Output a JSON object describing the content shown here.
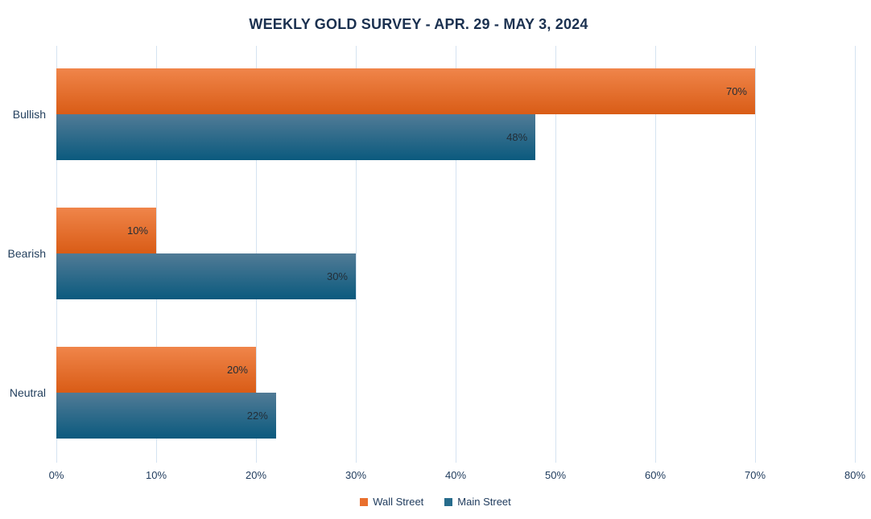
{
  "page": {
    "background": "#ffffff"
  },
  "chart_data": {
    "type": "bar",
    "orientation": "horizontal",
    "title": "WEEKLY GOLD SURVEY - APR. 29 - MAY 3, 2024",
    "categories": [
      "Bullish",
      "Bearish",
      "Neutral"
    ],
    "series": [
      {
        "name": "Wall Street",
        "values": [
          70,
          10,
          20
        ],
        "labels": [
          "70%",
          "10%",
          "20%"
        ],
        "swatch_color": "#e96f2d",
        "gradient_top": "#f0854a",
        "gradient_bottom": "#d95c16"
      },
      {
        "name": "Main Street",
        "values": [
          48,
          30,
          22
        ],
        "labels": [
          "48%",
          "30%",
          "22%"
        ],
        "swatch_color": "#276c8c",
        "gradient_top": "#517b96",
        "gradient_bottom": "#0b5a7e"
      }
    ],
    "xlim": [
      0,
      80
    ],
    "x_ticks": [
      "0%",
      "10%",
      "20%",
      "30%",
      "40%",
      "50%",
      "60%",
      "70%",
      "80%"
    ],
    "grid": "vertical",
    "gridline_color": "#d5e3f1",
    "legend_position": "bottom",
    "colors": {
      "title_text": "#1b3150",
      "axis_text": "#1e3a5c",
      "category_text": "#24405e",
      "value_label_text": "#232d36"
    }
  }
}
